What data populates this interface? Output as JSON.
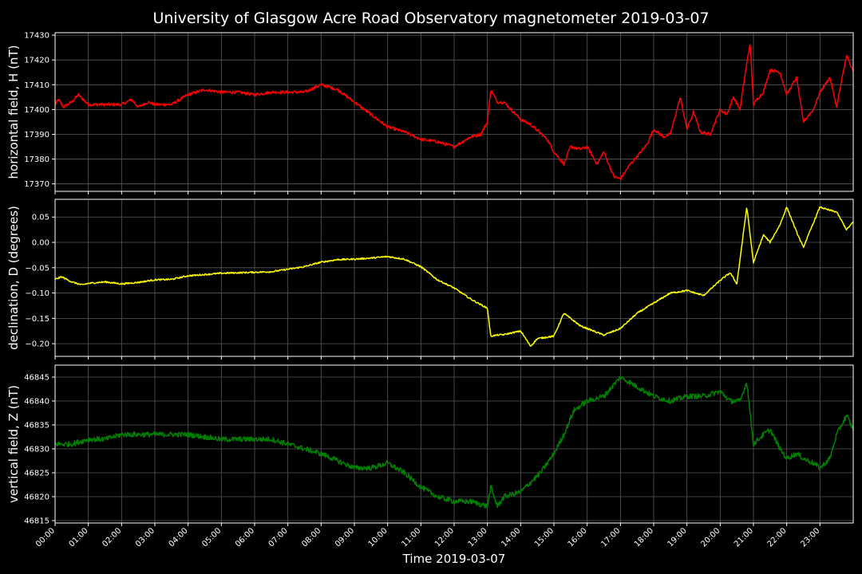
{
  "chart_data": {
    "title": "University of Glasgow Acre Road Observatory magnetometer 2019-03-07",
    "xlabel": "Time 2019-03-07",
    "x_ticks": [
      "00:00",
      "01:00",
      "02:00",
      "03:00",
      "04:00",
      "05:00",
      "06:00",
      "07:00",
      "08:00",
      "09:00",
      "10:00",
      "11:00",
      "12:00",
      "13:00",
      "14:00",
      "15:00",
      "16:00",
      "17:00",
      "18:00",
      "19:00",
      "20:00",
      "21:00",
      "22:00",
      "23:00"
    ],
    "x_range_hours": [
      0,
      24
    ],
    "grid": true,
    "panels": [
      {
        "type": "line",
        "ylabel": "horizontal field, H (nT)",
        "color": "#ff0000",
        "ylim": [
          17367,
          17431
        ],
        "yticks": [
          17370,
          17380,
          17390,
          17400,
          17410,
          17420,
          17430
        ],
        "ytick_labels": [
          "17370",
          "17380",
          "17390",
          "17400",
          "17410",
          "17420",
          "17430"
        ],
        "noise": 0.6,
        "x": [
          0,
          0.1,
          0.25,
          0.5,
          0.7,
          1,
          1.5,
          2,
          2.3,
          2.5,
          2.8,
          3,
          3.5,
          4,
          4.5,
          5,
          5.5,
          6,
          6.5,
          7,
          7.5,
          8,
          8.5,
          9,
          9.5,
          10,
          10.5,
          11,
          11.5,
          12,
          12.5,
          12.8,
          13,
          13.1,
          13.3,
          13.5,
          14,
          14.3,
          14.8,
          15,
          15.3,
          15.5,
          15.8,
          16,
          16.3,
          16.5,
          16.8,
          17,
          17.3,
          17.5,
          17.8,
          18,
          18.3,
          18.5,
          18.8,
          19,
          19.2,
          19.4,
          19.7,
          20,
          20.2,
          20.4,
          20.6,
          20.7,
          20.9,
          21,
          21.1,
          21.3,
          21.5,
          21.8,
          22,
          22.3,
          22.5,
          22.8,
          23,
          23.3,
          23.5,
          23.8,
          24
        ],
        "y": [
          17402,
          17404,
          17401,
          17403,
          17406,
          17402,
          17402,
          17402,
          17404,
          17401,
          17403,
          17402,
          17402,
          17406,
          17408,
          17407,
          17407,
          17406,
          17407,
          17407,
          17407,
          17410,
          17408,
          17403,
          17398,
          17393,
          17391,
          17388,
          17387,
          17385,
          17389,
          17390,
          17395,
          17408,
          17403,
          17403,
          17396,
          17394,
          17388,
          17383,
          17378,
          17385,
          17384,
          17385,
          17378,
          17383,
          17373,
          17372,
          17378,
          17381,
          17386,
          17392,
          17389,
          17390,
          17405,
          17392,
          17399,
          17391,
          17390,
          17400,
          17398,
          17405,
          17400,
          17410,
          17427,
          17402,
          17404,
          17407,
          17416,
          17415,
          17406,
          17413,
          17395,
          17400,
          17407,
          17413,
          17401,
          17422,
          17415
        ],
        "line_width": 1.5
      },
      {
        "type": "line",
        "ylabel": "declination, D (degrees)",
        "color": "#ffff00",
        "ylim": [
          -0.225,
          0.085
        ],
        "yticks": [
          -0.2,
          -0.15,
          -0.1,
          -0.05,
          0.0,
          0.05
        ],
        "ytick_labels": [
          "−0.20",
          "−0.15",
          "−0.10",
          "−0.05",
          "0.00",
          "0.05"
        ],
        "noise": 0.0015,
        "x": [
          0,
          0.2,
          0.5,
          0.8,
          1,
          1.5,
          2,
          2.5,
          3,
          3.5,
          4,
          5,
          6,
          6.5,
          7,
          7.5,
          8,
          8.5,
          9,
          9.5,
          10,
          10.5,
          11,
          11.5,
          12,
          12.5,
          13,
          13.1,
          13.3,
          13.5,
          14,
          14.3,
          14.5,
          15,
          15.3,
          15.5,
          15.8,
          16,
          16.5,
          17,
          17.5,
          18,
          18.5,
          19,
          19.5,
          20,
          20.3,
          20.5,
          20.8,
          21,
          21.3,
          21.5,
          21.8,
          22,
          22.3,
          22.5,
          23,
          23.2,
          23.5,
          23.8,
          24
        ],
        "y": [
          -0.073,
          -0.068,
          -0.078,
          -0.084,
          -0.081,
          -0.078,
          -0.082,
          -0.079,
          -0.074,
          -0.073,
          -0.066,
          -0.061,
          -0.059,
          -0.058,
          -0.053,
          -0.048,
          -0.039,
          -0.034,
          -0.033,
          -0.031,
          -0.028,
          -0.033,
          -0.048,
          -0.074,
          -0.09,
          -0.112,
          -0.13,
          -0.185,
          -0.183,
          -0.182,
          -0.175,
          -0.205,
          -0.19,
          -0.185,
          -0.14,
          -0.15,
          -0.165,
          -0.17,
          -0.183,
          -0.17,
          -0.14,
          -0.12,
          -0.1,
          -0.095,
          -0.105,
          -0.075,
          -0.06,
          -0.082,
          0.07,
          -0.04,
          0.015,
          0.0,
          0.035,
          0.07,
          0.02,
          -0.01,
          0.07,
          0.065,
          0.06,
          0.025,
          0.04
        ],
        "line_width": 1.5
      },
      {
        "type": "line",
        "ylabel": "vertical field, Z (nT)",
        "color": "#008000",
        "ylim": [
          46814.5,
          46847.5
        ],
        "yticks": [
          46815,
          46820,
          46825,
          46830,
          46835,
          46840,
          46845
        ],
        "ytick_labels": [
          "46815",
          "46820",
          "46825",
          "46830",
          "46835",
          "46840",
          "46845"
        ],
        "noise": 0.55,
        "x": [
          0,
          0.5,
          1,
          1.5,
          2,
          3,
          4,
          5,
          6,
          6.5,
          7,
          7.5,
          8,
          9,
          9.5,
          10,
          10.5,
          11,
          11.5,
          12,
          12.5,
          13,
          13.1,
          13.3,
          13.5,
          14,
          14.3,
          14.6,
          15,
          15.3,
          15.6,
          16,
          16.5,
          17,
          17.5,
          18,
          18.5,
          19,
          19.5,
          20,
          20.3,
          20.6,
          20.8,
          21,
          21.3,
          21.5,
          21.8,
          22,
          22.3,
          22.5,
          22.8,
          23,
          23.3,
          23.5,
          23.8,
          24
        ],
        "y": [
          46831,
          46831,
          46832,
          46832,
          46833,
          46833,
          46833,
          46832,
          46832,
          46832,
          46831,
          46830,
          46829,
          46826,
          46826,
          46827,
          46825,
          46822,
          46820,
          46819,
          46819,
          46818,
          46822,
          46818,
          46820,
          46821,
          46823,
          46825,
          46829,
          46833,
          46838,
          46840,
          46841,
          46845,
          46843,
          46841,
          46840,
          46841,
          46841,
          46842,
          46840,
          46840,
          46844,
          46831,
          46833,
          46834,
          46830,
          46828,
          46829,
          46828,
          46827,
          46826,
          46828,
          46833,
          46837,
          46834
        ],
        "line_width": 1.5
      }
    ]
  }
}
